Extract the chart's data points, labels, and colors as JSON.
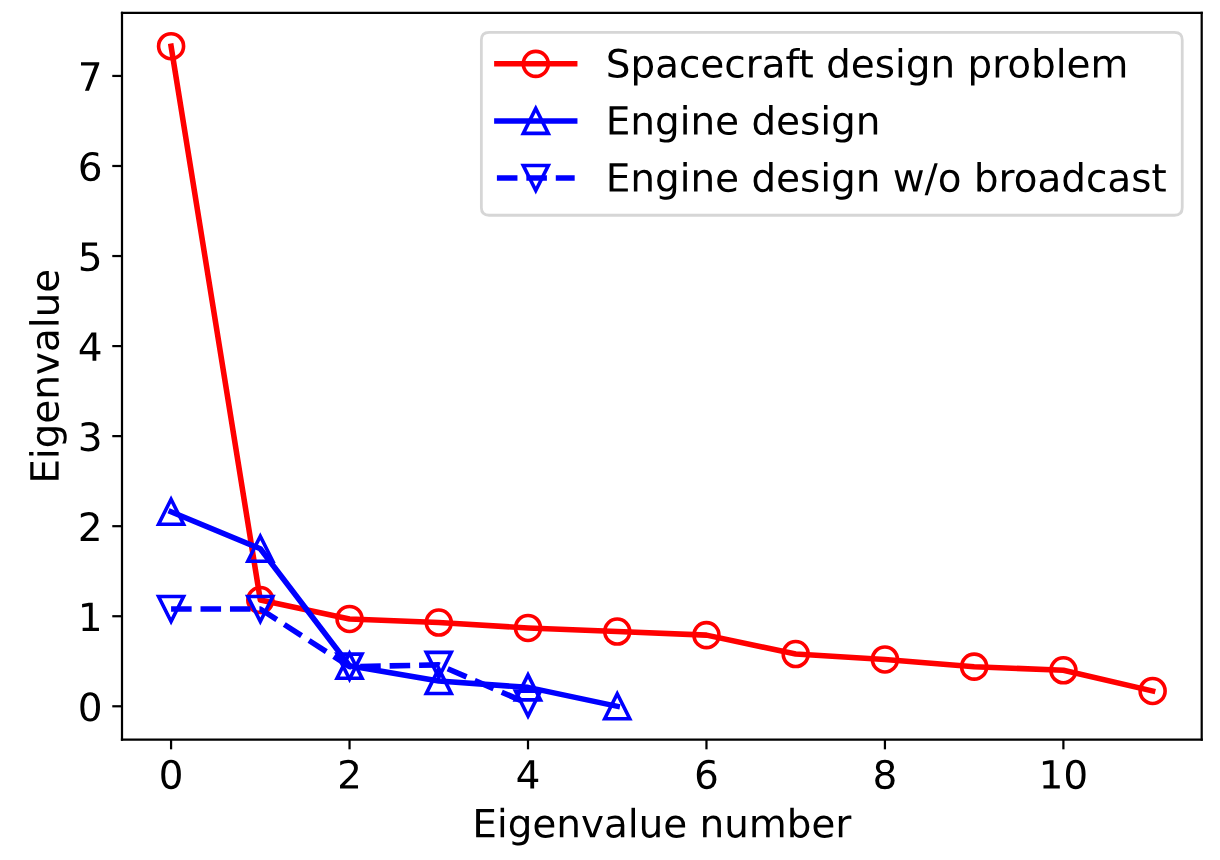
{
  "chart_data": {
    "type": "line",
    "xlabel": "Eigenvalue number",
    "ylabel": "Eigenvalue",
    "xlim": [
      -0.55,
      11.55
    ],
    "ylim": [
      -0.37,
      7.7
    ],
    "xticks": [
      0,
      2,
      4,
      6,
      8,
      10
    ],
    "yticks": [
      0,
      1,
      2,
      3,
      4,
      5,
      6,
      7
    ],
    "legend": "top right",
    "grid": false,
    "series": [
      {
        "name": "Spacecraft design problem",
        "color": "#ff0000",
        "marker": "circle",
        "line_style": "solid",
        "x": [
          0,
          1,
          2,
          3,
          4,
          5,
          6,
          7,
          8,
          9,
          10,
          11
        ],
        "values": [
          7.33,
          1.18,
          0.97,
          0.93,
          0.87,
          0.83,
          0.79,
          0.58,
          0.52,
          0.44,
          0.4,
          0.17
        ]
      },
      {
        "name": "Engine design",
        "color": "#0000ff",
        "marker": "triangle",
        "line_style": "solid",
        "x": [
          0,
          1,
          2,
          3,
          4,
          5
        ],
        "values": [
          2.16,
          1.75,
          0.45,
          0.28,
          0.21,
          0.0
        ]
      },
      {
        "name": "Engine design w/o broadcast",
        "color": "#0000ff",
        "marker": "triangle_down",
        "line_style": "dashed",
        "x": [
          0,
          1,
          2,
          3,
          4
        ],
        "values": [
          1.08,
          1.08,
          0.44,
          0.46,
          0.03
        ]
      }
    ]
  }
}
